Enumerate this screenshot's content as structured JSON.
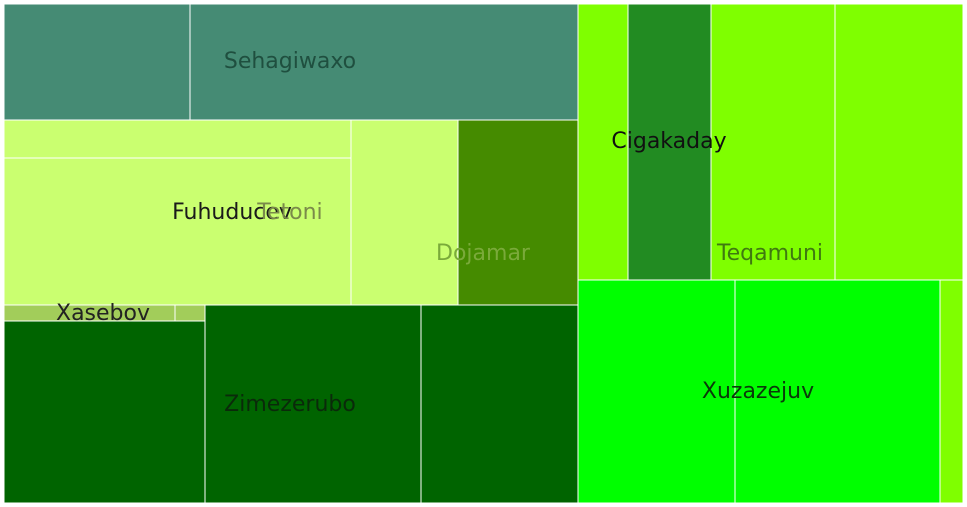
{
  "chart_data": {
    "type": "treemap",
    "title": "",
    "cells": [
      {
        "id": "seh-a",
        "color": "#458b74"
      },
      {
        "id": "seh-b",
        "color": "#458b74"
      },
      {
        "id": "fuh-a",
        "color": "#caff70"
      },
      {
        "id": "fuh-b",
        "color": "#caff70"
      },
      {
        "id": "tet",
        "color": "#caff70"
      },
      {
        "id": "doj",
        "color": "#458b00"
      },
      {
        "id": "xas-a",
        "color": "#a2cd5a"
      },
      {
        "id": "xas-b",
        "color": "#a2cd5a"
      },
      {
        "id": "zim-a",
        "color": "#006400"
      },
      {
        "id": "zim-b",
        "color": "#006400"
      },
      {
        "id": "zim-c",
        "color": "#006400"
      },
      {
        "id": "cig-a",
        "color": "#7fff00"
      },
      {
        "id": "cig-b",
        "color": "#228b22"
      },
      {
        "id": "teq-a",
        "color": "#7fff00"
      },
      {
        "id": "teq-b",
        "color": "#7fff00"
      },
      {
        "id": "xuz-a",
        "color": "#00ff00"
      },
      {
        "id": "xuz-b",
        "color": "#00ff00"
      },
      {
        "id": "xuz-c",
        "color": "#7fff00"
      }
    ],
    "labels": [
      {
        "id": "sehagiwaxo",
        "text": "Sehagiwaxo",
        "color": "#1f4f3f"
      },
      {
        "id": "fuhuducev",
        "text": "Fuhuducev",
        "color": "#1a1a1a"
      },
      {
        "id": "tetoni",
        "text": "Tetoni",
        "color": "#7a8a4a"
      },
      {
        "id": "dojamar",
        "text": "Dojamar",
        "color": "#7aaa3a"
      },
      {
        "id": "xasebov",
        "text": "Xasebov",
        "color": "#222222"
      },
      {
        "id": "zimezerubo",
        "text": "Zimezerubo",
        "color": "#0a2a0a"
      },
      {
        "id": "cigakaday",
        "text": "Cigakaday",
        "color": "#111111"
      },
      {
        "id": "teqamuni",
        "text": "Teqamuni",
        "color": "#3f7a10"
      },
      {
        "id": "xuzazejuv",
        "text": "Xuzazejuv",
        "color": "#0a3a0a"
      }
    ]
  }
}
